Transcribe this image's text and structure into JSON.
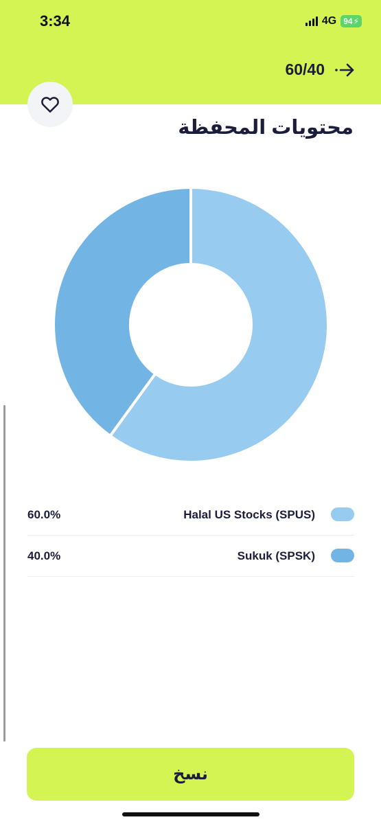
{
  "status_bar": {
    "time": "3:34",
    "network": "4G",
    "battery": "94"
  },
  "header": {
    "ratio": "60/40",
    "back_icon": "arrow-right-icon",
    "favorite_icon": "heart-icon"
  },
  "page": {
    "title": "محتويات المحفظة"
  },
  "chart_data": {
    "type": "pie",
    "donut": true,
    "categories": [
      "Halal US Stocks (SPUS)",
      "Sukuk (SPSK)"
    ],
    "values": [
      60.0,
      40.0
    ],
    "colors": [
      "#98cbf0",
      "#72b5e4"
    ]
  },
  "legend": {
    "items": [
      {
        "name": "Halal US Stocks (SPUS)",
        "percent": "60.0%",
        "color": "#98cbf0"
      },
      {
        "name": "Sukuk (SPSK)",
        "percent": "40.0%",
        "color": "#72b5e4"
      }
    ]
  },
  "actions": {
    "copy_label": "نسخ"
  },
  "colors": {
    "accent": "#d3f452",
    "text": "#1b1d3a",
    "battery": "#5ad46b"
  }
}
